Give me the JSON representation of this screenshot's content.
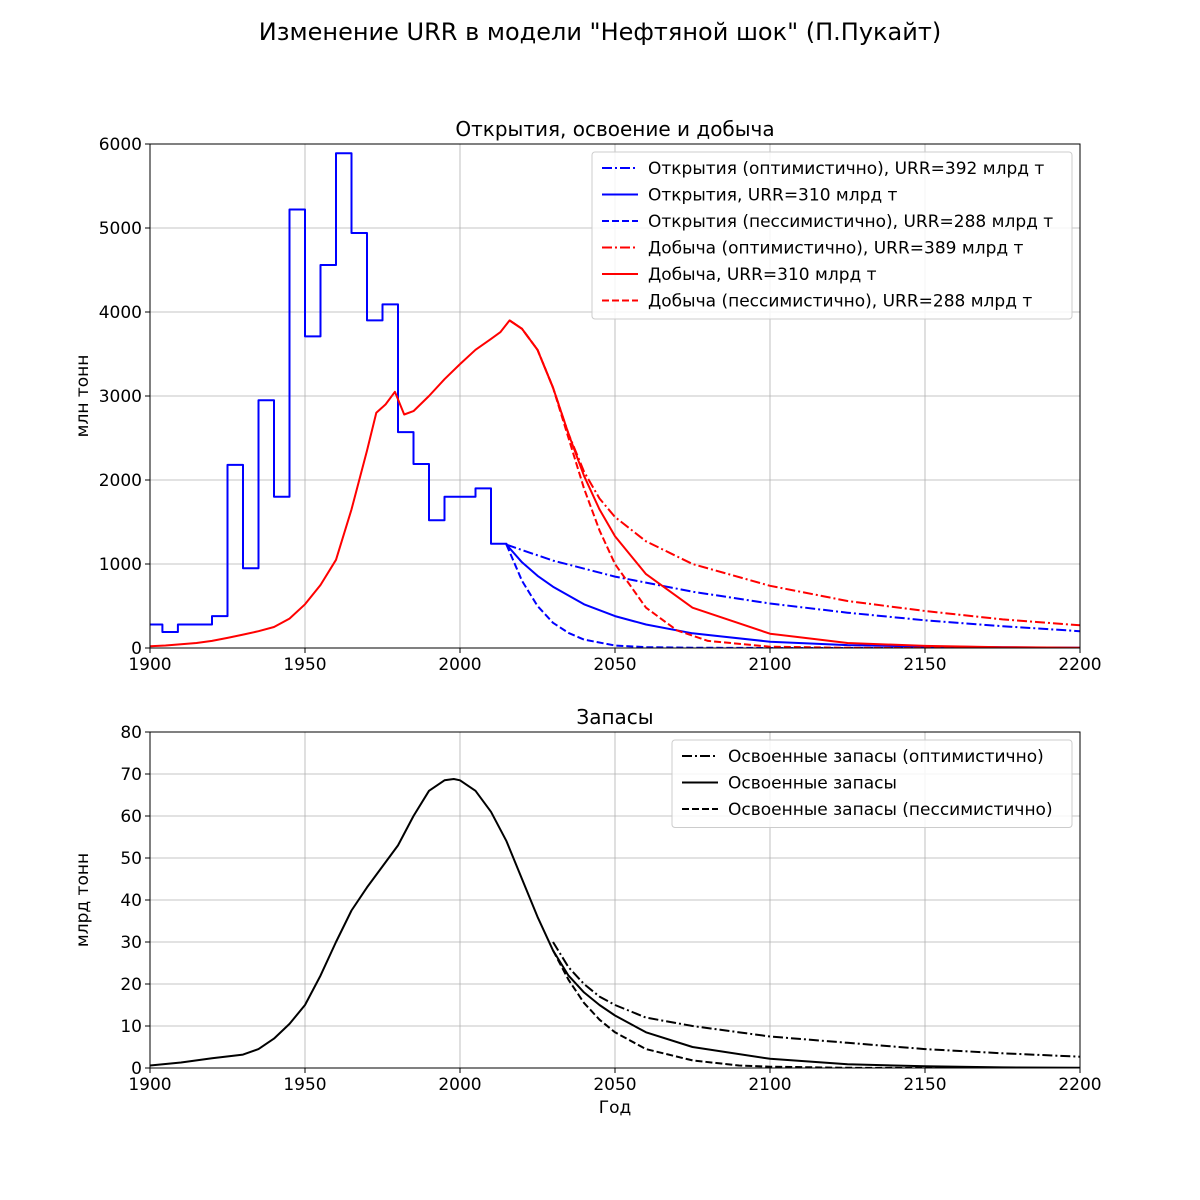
{
  "figure": {
    "suptitle": "Изменение URR в модели \"Нефтяной шок\" (П.Пукайт)"
  },
  "chart_data": [
    {
      "type": "line",
      "title": "Открытия, освоение и добыча",
      "xlabel": "",
      "ylabel": "млн тонн",
      "xlim": [
        1900,
        2200
      ],
      "ylim": [
        0,
        6000
      ],
      "xticks": [
        "1900",
        "1950",
        "2000",
        "2050",
        "2100",
        "2150",
        "2200"
      ],
      "yticks": [
        "0",
        "1000",
        "2000",
        "3000",
        "4000",
        "5000",
        "6000"
      ],
      "grid": true,
      "legend_position": "top-right",
      "series": [
        {
          "name": "Открытия (оптимистично), URR=392 млрд т",
          "color": "#0000ff",
          "style": "dashdot",
          "x": [
            2015,
            2030,
            2050,
            2075,
            2100,
            2125,
            2150,
            2175,
            2200
          ],
          "y": [
            1230,
            1040,
            850,
            670,
            530,
            420,
            330,
            260,
            200
          ]
        },
        {
          "name": "Открытия, URR=310 млрд т",
          "color": "#0000ff",
          "style": "solid",
          "steps": [
            [
              1900,
              280
            ],
            [
              1904,
              190
            ],
            [
              1909,
              280
            ],
            [
              1920,
              380
            ],
            [
              1925,
              2180
            ],
            [
              1930,
              950
            ],
            [
              1935,
              2950
            ],
            [
              1940,
              1800
            ],
            [
              1945,
              5220
            ],
            [
              1950,
              3710
            ],
            [
              1955,
              4560
            ],
            [
              1960,
              5890
            ],
            [
              1965,
              4940
            ],
            [
              1970,
              3900
            ],
            [
              1975,
              4090
            ],
            [
              1980,
              2570
            ],
            [
              1985,
              2190
            ],
            [
              1990,
              1520
            ],
            [
              1995,
              1800
            ],
            [
              2005,
              1900
            ],
            [
              2010,
              1240
            ],
            [
              2015,
              1240
            ]
          ],
          "x": [
            2015,
            2020,
            2025,
            2030,
            2040,
            2050,
            2060,
            2075,
            2100,
            2125,
            2150,
            2175,
            2200
          ],
          "y": [
            1230,
            1020,
            860,
            730,
            520,
            380,
            280,
            175,
            75,
            35,
            18,
            8,
            3
          ]
        },
        {
          "name": "Открытия (пессимистично), URR=288 млрд т",
          "color": "#0000ff",
          "style": "dashed",
          "x": [
            2015,
            2020,
            2025,
            2030,
            2035,
            2040,
            2050,
            2060,
            2075,
            2100,
            2200
          ],
          "y": [
            1230,
            800,
            500,
            300,
            180,
            100,
            30,
            10,
            3,
            0,
            0
          ]
        },
        {
          "name": "Добыча (оптимистично), URR=389 млрд т",
          "color": "#ff0000",
          "style": "dashdot",
          "x": [
            2016,
            2020,
            2025,
            2030,
            2035,
            2040,
            2045,
            2050,
            2060,
            2075,
            2100,
            2125,
            2150,
            2175,
            2200
          ],
          "y": [
            3900,
            3800,
            3550,
            3100,
            2550,
            2100,
            1780,
            1560,
            1270,
            1000,
            740,
            560,
            440,
            340,
            270
          ]
        },
        {
          "name": "Добыча, URR=310 млрд т",
          "color": "#ff0000",
          "style": "solid",
          "x": [
            1900,
            1905,
            1910,
            1915,
            1920,
            1925,
            1930,
            1935,
            1940,
            1945,
            1950,
            1955,
            1960,
            1965,
            1970,
            1973,
            1976,
            1979,
            1982,
            1985,
            1990,
            1995,
            2000,
            2005,
            2010,
            2013,
            2016,
            2020,
            2025,
            2030,
            2035,
            2040,
            2045,
            2050,
            2060,
            2075,
            2100,
            2125,
            2150,
            2175,
            2200
          ],
          "y": [
            20,
            30,
            45,
            60,
            85,
            120,
            160,
            200,
            250,
            350,
            520,
            750,
            1050,
            1650,
            2350,
            2800,
            2900,
            3050,
            2780,
            2820,
            3000,
            3200,
            3380,
            3550,
            3680,
            3760,
            3900,
            3800,
            3550,
            3100,
            2550,
            2050,
            1650,
            1330,
            880,
            480,
            170,
            60,
            25,
            10,
            4
          ]
        },
        {
          "name": "Добыча (пессимистично), URR=288 млрд т",
          "color": "#ff0000",
          "style": "dashed",
          "x": [
            2016,
            2020,
            2025,
            2030,
            2035,
            2040,
            2045,
            2050,
            2060,
            2070,
            2080,
            2100,
            2125,
            2150,
            2200
          ],
          "y": [
            3900,
            3800,
            3550,
            3100,
            2500,
            1900,
            1400,
            1000,
            480,
            210,
            85,
            15,
            2,
            0,
            0
          ]
        }
      ]
    },
    {
      "type": "line",
      "title": "Запасы",
      "xlabel": "Год",
      "ylabel": "млрд тонн",
      "xlim": [
        1900,
        2200
      ],
      "ylim": [
        0,
        80
      ],
      "xticks": [
        "1900",
        "1950",
        "2000",
        "2050",
        "2100",
        "2150",
        "2200"
      ],
      "yticks": [
        "0",
        "10",
        "20",
        "30",
        "40",
        "50",
        "60",
        "70",
        "80"
      ],
      "grid": true,
      "legend_position": "top-right",
      "series": [
        {
          "name": "Освоенные запасы (оптимистично)",
          "color": "#000000",
          "style": "dashdot",
          "x": [
            2030,
            2035,
            2040,
            2045,
            2050,
            2060,
            2075,
            2100,
            2125,
            2150,
            2175,
            2200
          ],
          "y": [
            30,
            24,
            20,
            17,
            15,
            12,
            10,
            7.5,
            6,
            4.5,
            3.5,
            2.7
          ]
        },
        {
          "name": "Освоенные запасы",
          "color": "#000000",
          "style": "solid",
          "x": [
            1900,
            1910,
            1920,
            1930,
            1935,
            1940,
            1945,
            1950,
            1955,
            1960,
            1965,
            1970,
            1975,
            1980,
            1985,
            1990,
            1995,
            1998,
            2000,
            2005,
            2010,
            2015,
            2020,
            2025,
            2030,
            2035,
            2040,
            2045,
            2050,
            2060,
            2075,
            2100,
            2125,
            2150,
            2175,
            2200
          ],
          "y": [
            0.6,
            1.3,
            2.3,
            3.2,
            4.5,
            7,
            10.5,
            15,
            22,
            30,
            37.5,
            43,
            48,
            53,
            60,
            66,
            68.5,
            68.8,
            68.5,
            66,
            61,
            54,
            45,
            36,
            28,
            22,
            18,
            15,
            12.5,
            8.5,
            5,
            2.2,
            0.9,
            0.4,
            0.15,
            0.05
          ]
        },
        {
          "name": "Освоенные запасы (пессимистично)",
          "color": "#000000",
          "style": "dashed",
          "x": [
            2030,
            2035,
            2040,
            2045,
            2050,
            2060,
            2075,
            2090,
            2100,
            2125,
            2150,
            2200
          ],
          "y": [
            28,
            21,
            15.5,
            11.5,
            8.5,
            4.5,
            1.8,
            0.6,
            0.3,
            0.05,
            0,
            0
          ]
        }
      ]
    }
  ]
}
